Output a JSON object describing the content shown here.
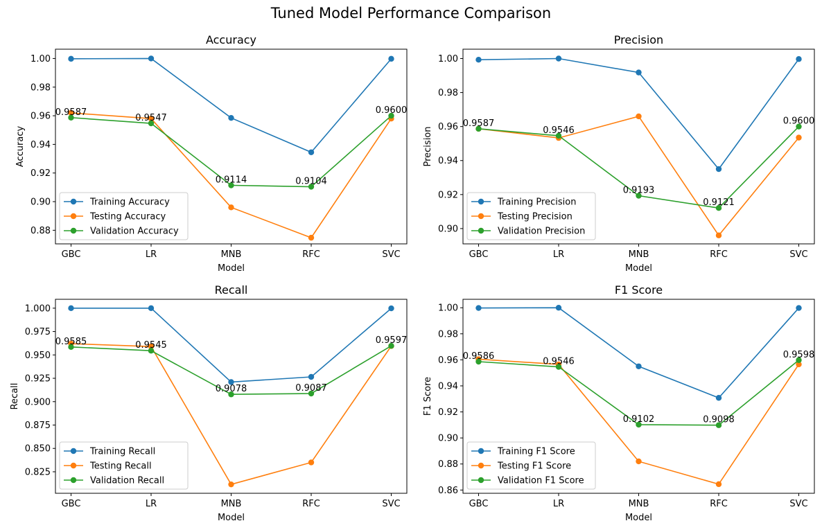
{
  "figure": {
    "title": "Tuned Model Performance Comparison"
  },
  "colors": {
    "training": "#1f77b4",
    "testing": "#ff7f0e",
    "validation": "#2ca02c"
  },
  "chart_data": [
    {
      "type": "line",
      "title": "Accuracy",
      "xlabel": "Model",
      "ylabel": "Accuracy",
      "categories": [
        "GBC",
        "LR",
        "MNB",
        "RFC",
        "SVC"
      ],
      "ylim": [
        0.8705,
        1.0065
      ],
      "yticks": [
        "0.88",
        "0.90",
        "0.92",
        "0.94",
        "0.96",
        "0.98",
        "1.00"
      ],
      "legend_position": "lower-left",
      "series": [
        {
          "name": "Training Accuracy",
          "color": "#1f77b4",
          "values": [
            0.9998,
            1.0,
            0.9585,
            0.9345,
            0.9998
          ]
        },
        {
          "name": "Testing Accuracy",
          "color": "#ff7f0e",
          "values": [
            0.962,
            0.958,
            0.896,
            0.8748,
            0.958
          ]
        },
        {
          "name": "Validation Accuracy",
          "color": "#2ca02c",
          "values": [
            0.9587,
            0.9547,
            0.9114,
            0.9104,
            0.96
          ]
        }
      ],
      "annotations": [
        "0.9587",
        "0.9547",
        "0.9114",
        "0.9104",
        "0.9600"
      ]
    },
    {
      "type": "line",
      "title": "Precision",
      "xlabel": "Model",
      "ylabel": "Precision",
      "categories": [
        "GBC",
        "LR",
        "MNB",
        "RFC",
        "SVC"
      ],
      "ylim": [
        0.891,
        1.0055
      ],
      "yticks": [
        "0.90",
        "0.92",
        "0.94",
        "0.96",
        "0.98",
        "1.00"
      ],
      "legend_position": "lower-left",
      "series": [
        {
          "name": "Training Precision",
          "color": "#1f77b4",
          "values": [
            0.9993,
            1.0,
            0.9918,
            0.935,
            0.9997
          ]
        },
        {
          "name": "Testing Precision",
          "color": "#ff7f0e",
          "values": [
            0.9587,
            0.9533,
            0.966,
            0.896,
            0.9535
          ]
        },
        {
          "name": "Validation Precision",
          "color": "#2ca02c",
          "values": [
            0.9587,
            0.9546,
            0.9193,
            0.9121,
            0.96
          ]
        }
      ],
      "annotations": [
        "0.9587",
        "0.9546",
        "0.9193",
        "0.9121",
        "0.9600"
      ]
    },
    {
      "type": "line",
      "title": "Recall",
      "xlabel": "Model",
      "ylabel": "Recall",
      "categories": [
        "GBC",
        "LR",
        "MNB",
        "RFC",
        "SVC"
      ],
      "ylim": [
        0.802,
        1.0095
      ],
      "yticks": [
        "0.825",
        "0.850",
        "0.875",
        "0.900",
        "0.925",
        "0.950",
        "0.975",
        "1.000"
      ],
      "legend_position": "lower-left",
      "series": [
        {
          "name": "Training Recall",
          "color": "#1f77b4",
          "values": [
            1.0,
            1.0,
            0.921,
            0.9265,
            0.9998
          ]
        },
        {
          "name": "Testing Recall",
          "color": "#ff7f0e",
          "values": [
            0.962,
            0.959,
            0.8115,
            0.835,
            0.9595
          ]
        },
        {
          "name": "Validation Recall",
          "color": "#2ca02c",
          "values": [
            0.9585,
            0.9545,
            0.9078,
            0.9087,
            0.9597
          ]
        }
      ],
      "annotations": [
        "0.9585",
        "0.9545",
        "0.9078",
        "0.9087",
        "0.9597"
      ]
    },
    {
      "type": "line",
      "title": "F1 Score",
      "xlabel": "Model",
      "ylabel": "F1 Score",
      "categories": [
        "GBC",
        "LR",
        "MNB",
        "RFC",
        "SVC"
      ],
      "ylim": [
        0.8575,
        1.0065
      ],
      "yticks": [
        "0.86",
        "0.88",
        "0.90",
        "0.92",
        "0.94",
        "0.96",
        "0.98",
        "1.00"
      ],
      "legend_position": "lower-left",
      "series": [
        {
          "name": "Training F1 Score",
          "color": "#1f77b4",
          "values": [
            0.9998,
            1.0,
            0.955,
            0.9308,
            0.9998
          ]
        },
        {
          "name": "Testing F1 Score",
          "color": "#ff7f0e",
          "values": [
            0.9605,
            0.9565,
            0.882,
            0.8645,
            0.9565
          ]
        },
        {
          "name": "Validation F1 Score",
          "color": "#2ca02c",
          "values": [
            0.9586,
            0.9546,
            0.9102,
            0.9098,
            0.9598
          ]
        }
      ],
      "annotations": [
        "0.9586",
        "0.9546",
        "0.9102",
        "0.9098",
        "0.9598"
      ]
    }
  ]
}
